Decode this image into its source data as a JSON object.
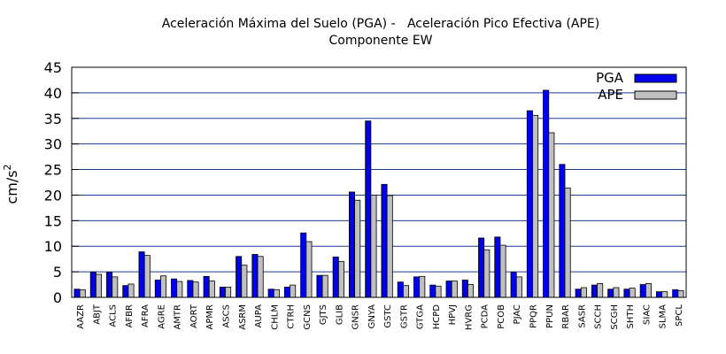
{
  "chart_data": {
    "type": "bar",
    "title": "Aceleración Máxima del Suelo (PGA) -   Aceleración Pico Efectiva (APE)",
    "subtitle": "Componente EW",
    "ylabel": "cm/s",
    "ylabel_sup": "2",
    "ylim": [
      0,
      45
    ],
    "yticks": [
      "0",
      "5",
      "10",
      "15",
      "20",
      "25",
      "30",
      "35",
      "40",
      "45"
    ],
    "legend_position": "top-right",
    "grid": "horizontal",
    "categories": [
      "AAZR",
      "ABJT",
      "ACLS",
      "AFBR",
      "AFRA",
      "AGRE",
      "AMTR",
      "AORT",
      "APMR",
      "ASCS",
      "ASRM",
      "AUPA",
      "CHLM",
      "CTRH",
      "GCNS",
      "GJTS",
      "GLIB",
      "GNSR",
      "GNYA",
      "GSTC",
      "GSTR",
      "GTGA",
      "HCPD",
      "HPVJ",
      "HVRG",
      "PCDA",
      "PCOB",
      "PJAC",
      "PPQR",
      "PPUN",
      "RBAR",
      "SASR",
      "SCCH",
      "SCGH",
      "SHTH",
      "SIAC",
      "SLMA",
      "SPCL"
    ],
    "series": [
      {
        "name": "PGA",
        "color": "#0000ee",
        "values": [
          1.6,
          4.9,
          4.9,
          2.3,
          8.9,
          3.4,
          3.6,
          3.3,
          4.1,
          2.0,
          8.0,
          8.4,
          1.6,
          2.0,
          12.6,
          4.3,
          7.9,
          20.6,
          34.5,
          22.1,
          3.0,
          4.0,
          2.4,
          3.2,
          3.4,
          11.6,
          11.8,
          4.9,
          36.5,
          40.5,
          26.0,
          1.6,
          2.4,
          1.6,
          1.6,
          2.5,
          1.1,
          1.5
        ]
      },
      {
        "name": "APE",
        "color": "#c0c0c0",
        "values": [
          1.5,
          4.5,
          4.0,
          2.6,
          8.2,
          4.2,
          3.1,
          3.0,
          3.2,
          2.0,
          6.3,
          8.0,
          1.5,
          2.4,
          10.9,
          4.3,
          7.0,
          19.0,
          20.0,
          19.9,
          2.3,
          4.1,
          2.2,
          3.2,
          2.5,
          9.3,
          10.2,
          4.0,
          35.6,
          32.2,
          21.4,
          1.9,
          2.7,
          1.9,
          1.8,
          2.7,
          1.1,
          1.3
        ]
      }
    ]
  }
}
